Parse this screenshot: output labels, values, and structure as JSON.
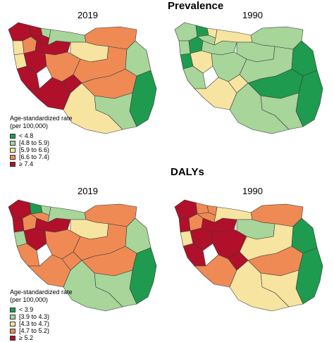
{
  "palette": {
    "dark_green": "#1e9b4e",
    "light_green": "#a7d59a",
    "pale_yellow": "#f6e4a0",
    "orange": "#ef8a55",
    "dark_red": "#b0102a"
  },
  "prevalence": {
    "title": "Prevalence",
    "maps": [
      {
        "year": "2019",
        "classes": [
          "dark_red",
          "dark_red",
          "light_green",
          "pale_yellow",
          "orange",
          "dark_red",
          "dark_red",
          "light_green",
          "orange",
          "pale_yellow",
          "pale_yellow",
          "dark_red",
          "orange",
          "dark_red",
          "dark_red",
          "orange",
          "light_green",
          "orange",
          "dark_green",
          "light_green",
          "pale_yellow",
          "dark_red"
        ]
      },
      {
        "year": "1990",
        "classes": [
          "light_green",
          "dark_green",
          "pale_yellow",
          "light_green",
          "dark_green",
          "light_green",
          "light_green",
          "pale_yellow",
          "light_green",
          "light_green",
          "dark_green",
          "pale_yellow",
          "light_green",
          "light_green",
          "pale_yellow",
          "light_green",
          "dark_green",
          "dark_green",
          "dark_green",
          "light_green",
          "light_green",
          "pale_yellow"
        ]
      }
    ],
    "legend": {
      "title_lines": [
        "Age-standardized rate",
        "(per 100,000)"
      ],
      "items": [
        {
          "label": "< 4.8",
          "color": "#1e9b4e"
        },
        {
          "label": "[4.8 to 5.9)",
          "color": "#a7d59a"
        },
        {
          "label": "[5.9 to 6.6)",
          "color": "#f6e4a0"
        },
        {
          "label": "[6.6 to 7.4)",
          "color": "#ef8a55"
        },
        {
          "label": "≥ 7.4",
          "color": "#b0102a"
        }
      ]
    }
  },
  "dalys": {
    "title": "DALYs",
    "maps": [
      {
        "year": "2019",
        "classes": [
          "dark_red",
          "dark_green",
          "light_green",
          "dark_red",
          "orange",
          "orange",
          "dark_red",
          "light_green",
          "orange",
          "pale_yellow",
          "light_green",
          "dark_red",
          "orange",
          "orange",
          "orange",
          "orange",
          "light_green",
          "orange",
          "dark_green",
          "light_green",
          "light_green",
          "orange"
        ]
      },
      {
        "year": "1990",
        "classes": [
          "dark_red",
          "orange",
          "orange",
          "dark_red",
          "orange",
          "orange",
          "dark_red",
          "pale_yellow",
          "orange",
          "light_green",
          "pale_yellow",
          "dark_red",
          "dark_red",
          "dark_red",
          "orange",
          "pale_yellow",
          "dark_green",
          "orange",
          "dark_green",
          "pale_yellow",
          "pale_yellow",
          "dark_red"
        ]
      }
    ],
    "legend": {
      "title_lines": [
        "Age-standardized rate",
        "(per 100,000)"
      ],
      "items": [
        {
          "label": "< 3.9",
          "color": "#1e9b4e"
        },
        {
          "label": "[3.9 to 4.3)",
          "color": "#a7d59a"
        },
        {
          "label": "[4.3 to 4.7)",
          "color": "#f6e4a0"
        },
        {
          "label": "[4.7 to 5.2)",
          "color": "#ef8a55"
        },
        {
          "label": "≥ 5.2",
          "color": "#b0102a"
        }
      ]
    }
  }
}
